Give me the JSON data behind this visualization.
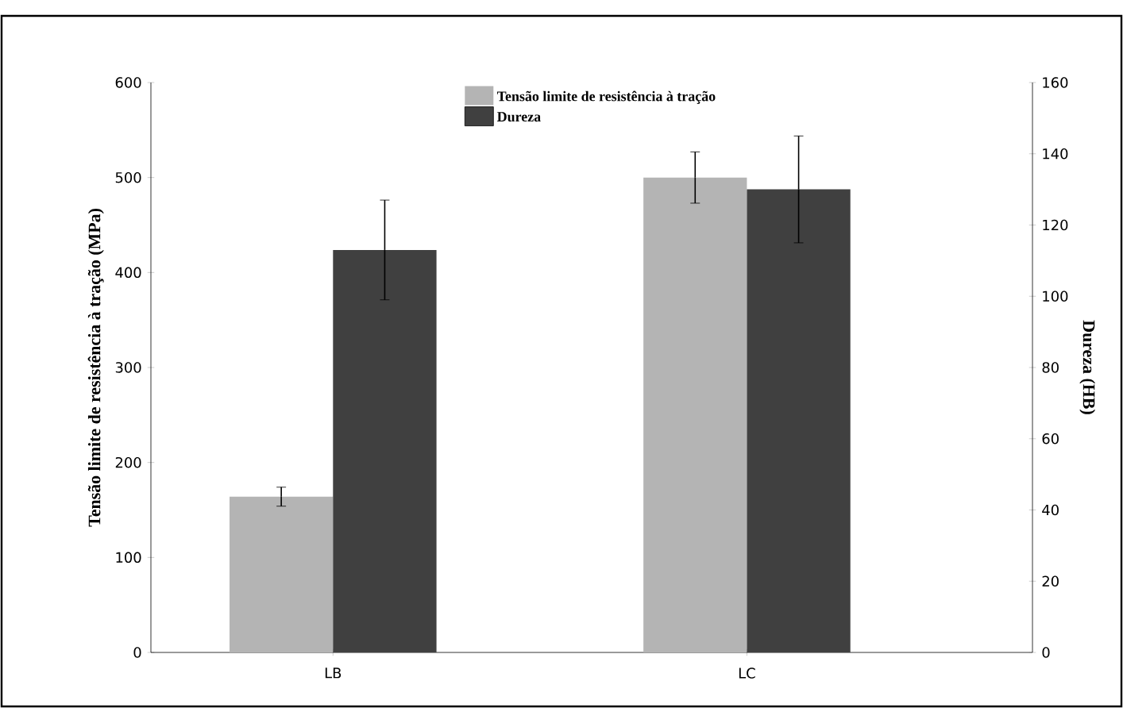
{
  "chart_data": {
    "type": "bar",
    "categories": [
      "LB",
      "LC"
    ],
    "ylabel": "Tensão limite de resistência à tração (MPa)",
    "y2label": "Dureza (HB)",
    "ylim": [
      0,
      600
    ],
    "yticks": [
      0,
      100,
      200,
      300,
      400,
      500,
      600
    ],
    "y2lim": [
      0,
      160
    ],
    "y2ticks": [
      0,
      20,
      40,
      60,
      80,
      100,
      120,
      140,
      160
    ],
    "legend": "top",
    "series": [
      {
        "name": "Tensão limite de resistência à tração",
        "color": "#b4b4b4",
        "values": [
          164,
          500
        ],
        "errors": [
          10,
          27
        ]
      },
      {
        "name": "Dureza",
        "color": "#404040",
        "values": [
          113,
          130
        ],
        "errors": [
          14,
          15
        ],
        "axis": "y2"
      }
    ]
  }
}
